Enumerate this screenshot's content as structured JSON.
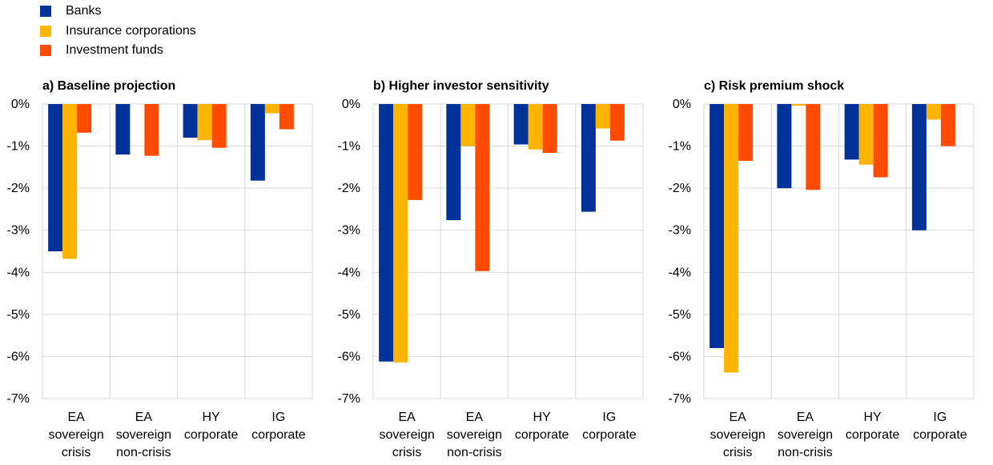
{
  "legend": [
    {
      "label": "Banks",
      "color": "#003299"
    },
    {
      "label": "Insurance corporations",
      "color": "#ffb400"
    },
    {
      "label": "Investment funds",
      "color": "#ff4b00"
    }
  ],
  "colors": {
    "gridline": "#d9d9d9",
    "axis": "#000000"
  },
  "chart_data": [
    {
      "type": "bar",
      "title": "a) Baseline projection",
      "categories": [
        [
          "EA",
          "sovereign",
          "crisis"
        ],
        [
          "EA",
          "sovereign",
          "non-crisis"
        ],
        [
          "HY",
          "corporate"
        ],
        [
          "IG",
          "corporate"
        ]
      ],
      "yticks": [
        "0%",
        "-1%",
        "-2%",
        "-3%",
        "-4%",
        "-5%",
        "-6%",
        "-7%"
      ],
      "ylim": [
        -7,
        0
      ],
      "grid": true,
      "series": [
        {
          "name": "Banks",
          "values": [
            -3.5,
            -1.2,
            -0.8,
            -1.82
          ]
        },
        {
          "name": "Insurance corporations",
          "values": [
            -3.68,
            0,
            -0.86,
            -0.22
          ]
        },
        {
          "name": "Investment funds",
          "values": [
            -0.68,
            -1.23,
            -1.04,
            -0.6
          ]
        }
      ]
    },
    {
      "type": "bar",
      "title": "b) Higher investor sensitivity",
      "categories": [
        [
          "EA",
          "sovereign",
          "crisis"
        ],
        [
          "EA",
          "sovereign",
          "non-crisis"
        ],
        [
          "HY",
          "corporate"
        ],
        [
          "IG",
          "corporate"
        ]
      ],
      "yticks": [
        "0%",
        "-1%",
        "-2%",
        "-3%",
        "-4%",
        "-5%",
        "-6%",
        "-7%"
      ],
      "ylim": [
        -7,
        0
      ],
      "grid": true,
      "series": [
        {
          "name": "Banks",
          "values": [
            -6.12,
            -2.76,
            -0.96,
            -2.56
          ]
        },
        {
          "name": "Insurance corporations",
          "values": [
            -6.14,
            -1.0,
            -1.08,
            -0.58
          ]
        },
        {
          "name": "Investment funds",
          "values": [
            -2.28,
            -3.97,
            -1.16,
            -0.87
          ]
        }
      ]
    },
    {
      "type": "bar",
      "title": "c) Risk premium shock",
      "categories": [
        [
          "EA",
          "sovereign",
          "crisis"
        ],
        [
          "EA",
          "sovereign",
          "non-crisis"
        ],
        [
          "HY",
          "corporate"
        ],
        [
          "IG",
          "corporate"
        ]
      ],
      "yticks": [
        "0%",
        "-1%",
        "-2%",
        "-3%",
        "-4%",
        "-5%",
        "-6%",
        "-7%"
      ],
      "ylim": [
        -7,
        0
      ],
      "grid": true,
      "series": [
        {
          "name": "Banks",
          "values": [
            -5.8,
            -2.0,
            -1.32,
            -3.0
          ]
        },
        {
          "name": "Insurance corporations",
          "values": [
            -6.38,
            -0.04,
            -1.44,
            -0.37
          ]
        },
        {
          "name": "Investment funds",
          "values": [
            -1.35,
            -2.04,
            -1.74,
            -1.0
          ]
        }
      ]
    }
  ]
}
